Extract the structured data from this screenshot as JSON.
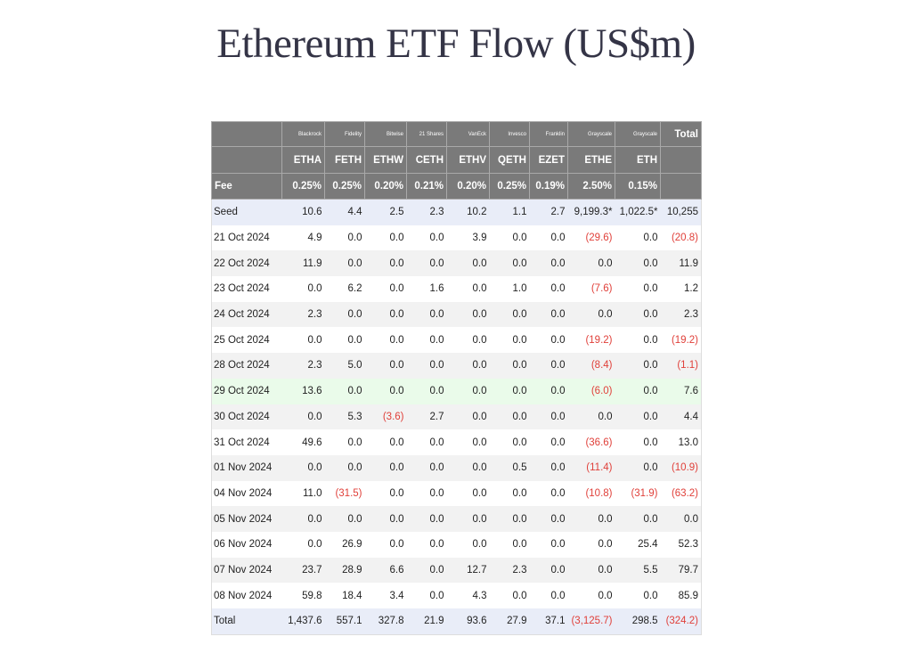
{
  "title": "Ethereum ETF Flow (US$m)",
  "colors": {
    "header_bg": "#7a7a7a",
    "negative": "#e0403a",
    "highlight_row": "#eafbea",
    "seed_total_row": "#e9edf8"
  },
  "header": {
    "issuers": [
      "",
      "Blackrock",
      "Fidelity",
      "Bitwise",
      "21 Shares",
      "VanEck",
      "Invesco",
      "Franklin",
      "Grayscale",
      "Grayscale",
      "Total"
    ],
    "tickers": [
      "",
      "ETHA",
      "FETH",
      "ETHW",
      "CETH",
      "ETHV",
      "QETH",
      "EZET",
      "ETHE",
      "ETH",
      ""
    ],
    "fees": [
      "Fee",
      "0.25%",
      "0.25%",
      "0.20%",
      "0.21%",
      "0.20%",
      "0.25%",
      "0.19%",
      "2.50%",
      "0.15%",
      ""
    ]
  },
  "rows": [
    {
      "style": "blue",
      "cells": [
        "Seed",
        "10.6",
        "4.4",
        "2.5",
        "2.3",
        "10.2",
        "1.1",
        "2.7",
        "9,199.3*",
        "1,022.5*",
        "10,255"
      ]
    },
    {
      "style": "white",
      "cells": [
        "21 Oct 2024",
        "4.9",
        "0.0",
        "0.0",
        "0.0",
        "3.9",
        "0.0",
        "0.0",
        "(29.6)",
        "0.0",
        "(20.8)"
      ]
    },
    {
      "style": "gray",
      "cells": [
        "22 Oct 2024",
        "11.9",
        "0.0",
        "0.0",
        "0.0",
        "0.0",
        "0.0",
        "0.0",
        "0.0",
        "0.0",
        "11.9"
      ]
    },
    {
      "style": "white",
      "cells": [
        "23 Oct 2024",
        "0.0",
        "6.2",
        "0.0",
        "1.6",
        "0.0",
        "1.0",
        "0.0",
        "(7.6)",
        "0.0",
        "1.2"
      ]
    },
    {
      "style": "gray",
      "cells": [
        "24 Oct 2024",
        "2.3",
        "0.0",
        "0.0",
        "0.0",
        "0.0",
        "0.0",
        "0.0",
        "0.0",
        "0.0",
        "2.3"
      ]
    },
    {
      "style": "white",
      "cells": [
        "25 Oct 2024",
        "0.0",
        "0.0",
        "0.0",
        "0.0",
        "0.0",
        "0.0",
        "0.0",
        "(19.2)",
        "0.0",
        "(19.2)"
      ]
    },
    {
      "style": "gray",
      "cells": [
        "28 Oct 2024",
        "2.3",
        "5.0",
        "0.0",
        "0.0",
        "0.0",
        "0.0",
        "0.0",
        "(8.4)",
        "0.0",
        "(1.1)"
      ]
    },
    {
      "style": "green",
      "cells": [
        "29 Oct 2024",
        "13.6",
        "0.0",
        "0.0",
        "0.0",
        "0.0",
        "0.0",
        "0.0",
        "(6.0)",
        "0.0",
        "7.6"
      ]
    },
    {
      "style": "gray",
      "cells": [
        "30 Oct 2024",
        "0.0",
        "5.3",
        "(3.6)",
        "2.7",
        "0.0",
        "0.0",
        "0.0",
        "0.0",
        "0.0",
        "4.4"
      ]
    },
    {
      "style": "white",
      "cells": [
        "31 Oct 2024",
        "49.6",
        "0.0",
        "0.0",
        "0.0",
        "0.0",
        "0.0",
        "0.0",
        "(36.6)",
        "0.0",
        "13.0"
      ]
    },
    {
      "style": "gray",
      "cells": [
        "01 Nov 2024",
        "0.0",
        "0.0",
        "0.0",
        "0.0",
        "0.0",
        "0.5",
        "0.0",
        "(11.4)",
        "0.0",
        "(10.9)"
      ]
    },
    {
      "style": "white",
      "cells": [
        "04 Nov 2024",
        "11.0",
        "(31.5)",
        "0.0",
        "0.0",
        "0.0",
        "0.0",
        "0.0",
        "(10.8)",
        "(31.9)",
        "(63.2)"
      ]
    },
    {
      "style": "gray",
      "cells": [
        "05 Nov 2024",
        "0.0",
        "0.0",
        "0.0",
        "0.0",
        "0.0",
        "0.0",
        "0.0",
        "0.0",
        "0.0",
        "0.0"
      ]
    },
    {
      "style": "white",
      "cells": [
        "06 Nov 2024",
        "0.0",
        "26.9",
        "0.0",
        "0.0",
        "0.0",
        "0.0",
        "0.0",
        "0.0",
        "25.4",
        "52.3"
      ]
    },
    {
      "style": "gray",
      "cells": [
        "07 Nov 2024",
        "23.7",
        "28.9",
        "6.6",
        "0.0",
        "12.7",
        "2.3",
        "0.0",
        "0.0",
        "5.5",
        "79.7"
      ]
    },
    {
      "style": "white",
      "cells": [
        "08 Nov 2024",
        "59.8",
        "18.4",
        "3.4",
        "0.0",
        "4.3",
        "0.0",
        "0.0",
        "0.0",
        "0.0",
        "85.9"
      ]
    },
    {
      "style": "blue",
      "cells": [
        "Total",
        "1,437.6",
        "557.1",
        "327.8",
        "21.9",
        "93.6",
        "27.9",
        "37.1",
        "(3,125.7)",
        "298.5",
        "(324.2)"
      ]
    }
  ]
}
